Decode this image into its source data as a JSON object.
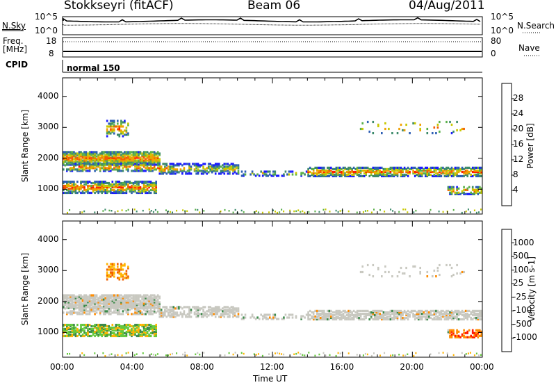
{
  "header": {
    "station": "Stokkseyri (fitACF)",
    "beam": "Beam 06",
    "date": "04/Aug/2011"
  },
  "noise_panel": {
    "left_label": "N.Sky",
    "right_label": "N.Search",
    "left_ticks": [
      "10^5",
      "10^0"
    ],
    "right_ticks": [
      "10^5",
      "10^0"
    ]
  },
  "freq_panel": {
    "left_label_1": "Freq.",
    "left_label_2": "[MHz]",
    "right_label": "Nave",
    "left_ticks": [
      "18",
      "8"
    ],
    "right_ticks": [
      "80",
      "0"
    ]
  },
  "cpid": {
    "label": "CPID",
    "mode": "normal 150"
  },
  "chart_data": [
    {
      "type": "heatmap",
      "quantity": "Power",
      "ylabel": "Slant Range [km]",
      "ylim": [
        200,
        4600
      ],
      "yticks": [
        "1000",
        "2000",
        "3000",
        "4000"
      ],
      "colorbar_label": "Power [dB]",
      "colorbar_ticks": [
        "4",
        "8",
        "12",
        "16",
        "20",
        "24",
        "28"
      ],
      "colorbar_range": [
        0,
        30
      ],
      "colors": [
        "#1a1aff",
        "#2d5fb4",
        "#3c8a6a",
        "#5ab04a",
        "#c8c800",
        "#f0a000",
        "#f06000",
        "#ff1a00"
      ]
    },
    {
      "type": "heatmap",
      "quantity": "Velocity",
      "ylabel": "Slant Range [km]",
      "ylim": [
        200,
        4600
      ],
      "yticks": [
        "1000",
        "2000",
        "3000",
        "4000"
      ],
      "colorbar_label": "Velocity [m s-1]",
      "colorbar_ticks": [
        "1000",
        "500",
        "100",
        "25",
        "-25",
        "-100",
        "-500",
        "-1000"
      ],
      "colors": [
        "#1a3cb4",
        "#2a6a8a",
        "#3c8a4a",
        "#64c83c",
        "#c8c8c0",
        "#ffb400",
        "#ff8c00",
        "#f06000",
        "#ff1a00"
      ],
      "xlabel": "Time UT",
      "xticks": [
        "00:00",
        "04:00",
        "08:00",
        "12:00",
        "16:00",
        "20:00",
        "00:00"
      ],
      "xlim_hours": [
        0,
        24
      ]
    }
  ]
}
